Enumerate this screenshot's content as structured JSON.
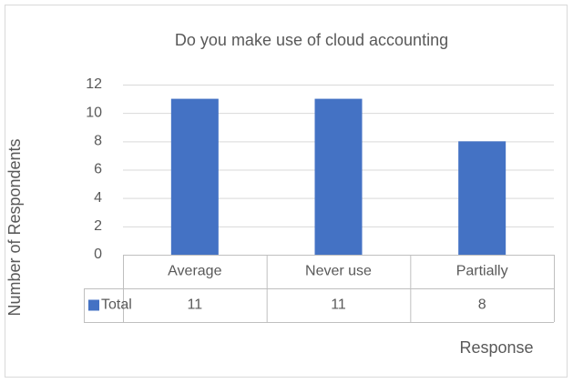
{
  "chart_data": {
    "type": "bar",
    "title": "Do you make use of cloud accounting",
    "categories": [
      "Average",
      "Never use",
      "Partially"
    ],
    "series": [
      {
        "name": "Total",
        "color": "#4472c4",
        "values": [
          11,
          11,
          8
        ]
      }
    ],
    "ylim": [
      0,
      12
    ],
    "yticks": [
      0,
      2,
      4,
      6,
      8,
      10,
      12
    ],
    "grid": true,
    "x_label": "Response",
    "y_label": "Number of Respondents",
    "data_table": true
  }
}
